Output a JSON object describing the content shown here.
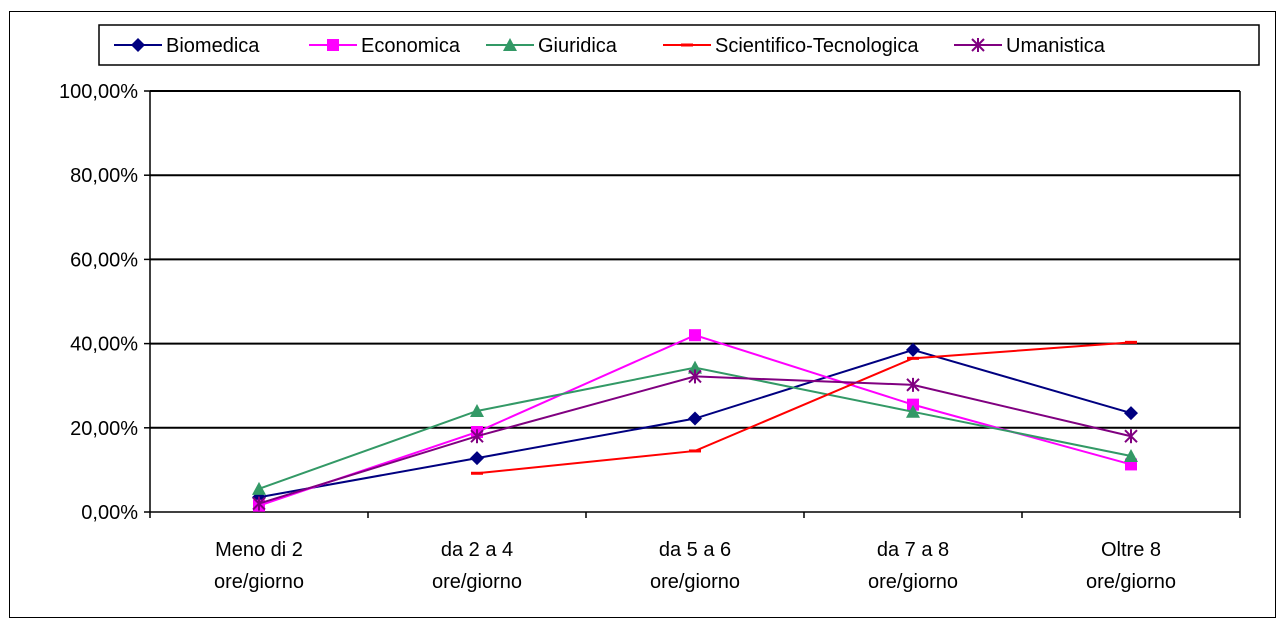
{
  "chart_data": {
    "type": "line",
    "categories": [
      [
        "Meno di 2",
        "ore/giorno"
      ],
      [
        "da 2 a 4",
        "ore/giorno"
      ],
      [
        "da 5 a 6",
        "ore/giorno"
      ],
      [
        "da 7 a 8",
        "ore/giorno"
      ],
      [
        "Oltre 8",
        "ore/giorno"
      ]
    ],
    "ylim": [
      0,
      100
    ],
    "y_ticks": [
      0,
      20,
      40,
      60,
      80,
      100
    ],
    "y_tick_labels": [
      "0,00%",
      "20,00%",
      "40,00%",
      "60,00%",
      "80,00%",
      "100,00%"
    ],
    "grid": "horizontal",
    "legend_position": "top",
    "series": [
      {
        "name": "Biomedica",
        "color": "#000080",
        "marker": "diamond",
        "values": [
          3.5,
          12.8,
          22.2,
          38.5,
          23.5
        ]
      },
      {
        "name": "Economica",
        "color": "#FF00FF",
        "marker": "square",
        "values": [
          1.5,
          19,
          42,
          25.5,
          11.3
        ]
      },
      {
        "name": "Giuridica",
        "color": "#339966",
        "marker": "triangle",
        "values": [
          5.5,
          24,
          34.3,
          23.8,
          13.3
        ]
      },
      {
        "name": "Scientifico-Tecnologica",
        "color": "#FF0000",
        "marker": "dash",
        "values": [
          null,
          9.2,
          14.5,
          36.5,
          40.3
        ]
      },
      {
        "name": "Umanistica",
        "color": "#800080",
        "marker": "star",
        "values": [
          2,
          18,
          32.2,
          30.2,
          18
        ]
      }
    ]
  }
}
